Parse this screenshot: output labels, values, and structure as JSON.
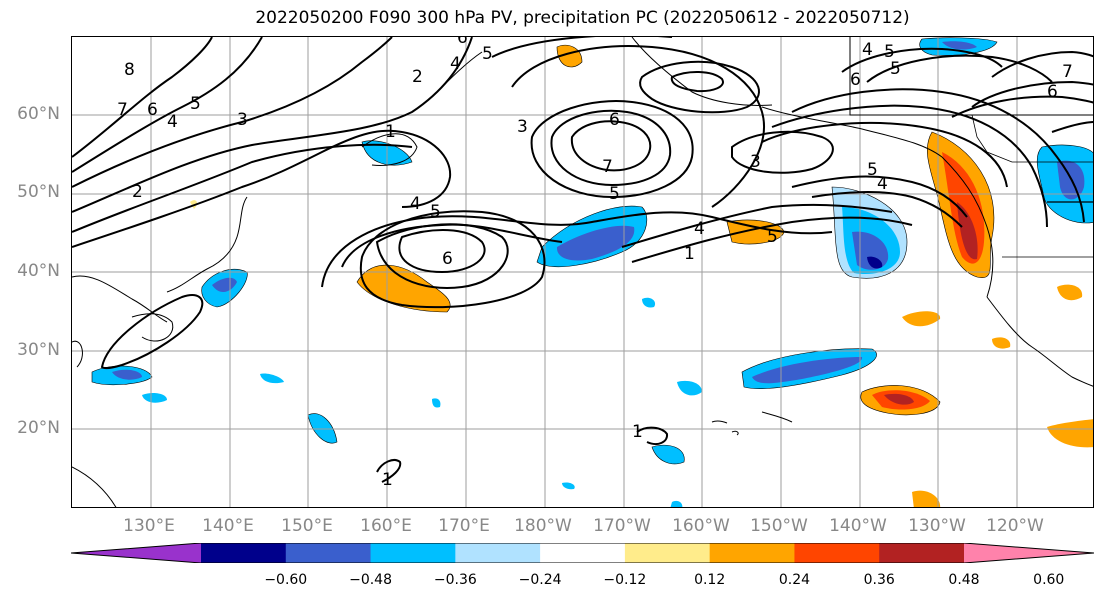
{
  "title": "2022050200 F090 300 hPa PV, precipitation PC (2022050612 - 2022050712)",
  "lat_labels": [
    "60°N",
    "50°N",
    "40°N",
    "30°N",
    "20°N"
  ],
  "lon_labels": [
    "130°E",
    "140°E",
    "150°E",
    "160°E",
    "170°E",
    "180°W",
    "170°W",
    "160°W",
    "150°W",
    "140°W",
    "130°W",
    "120°W"
  ],
  "colorbar": {
    "ticks": [
      "−0.60",
      "−0.48",
      "−0.36",
      "−0.24",
      "−0.12",
      "0.12",
      "0.24",
      "0.36",
      "0.48",
      "0.60"
    ],
    "colors": [
      "#9932cc",
      "#00008b",
      "#3a5fcd",
      "#00bfff",
      "#b0e2ff",
      "#ffffff",
      "#ffec8b",
      "#ffa500",
      "#ff4500",
      "#b22222",
      "#ff82ab"
    ]
  },
  "contour_labels": [
    "8",
    "7",
    "6",
    "5",
    "4",
    "3",
    "2",
    "1",
    "4",
    "5",
    "6",
    "3",
    "2",
    "6",
    "7",
    "5",
    "4",
    "5",
    "6",
    "4",
    "5",
    "1",
    "3",
    "5",
    "6",
    "5",
    "4",
    "4",
    "5",
    "7",
    "6",
    "1",
    "1"
  ],
  "colors": {
    "frame": "#000000",
    "grid": "#9e9e9e",
    "land": "#000000"
  }
}
